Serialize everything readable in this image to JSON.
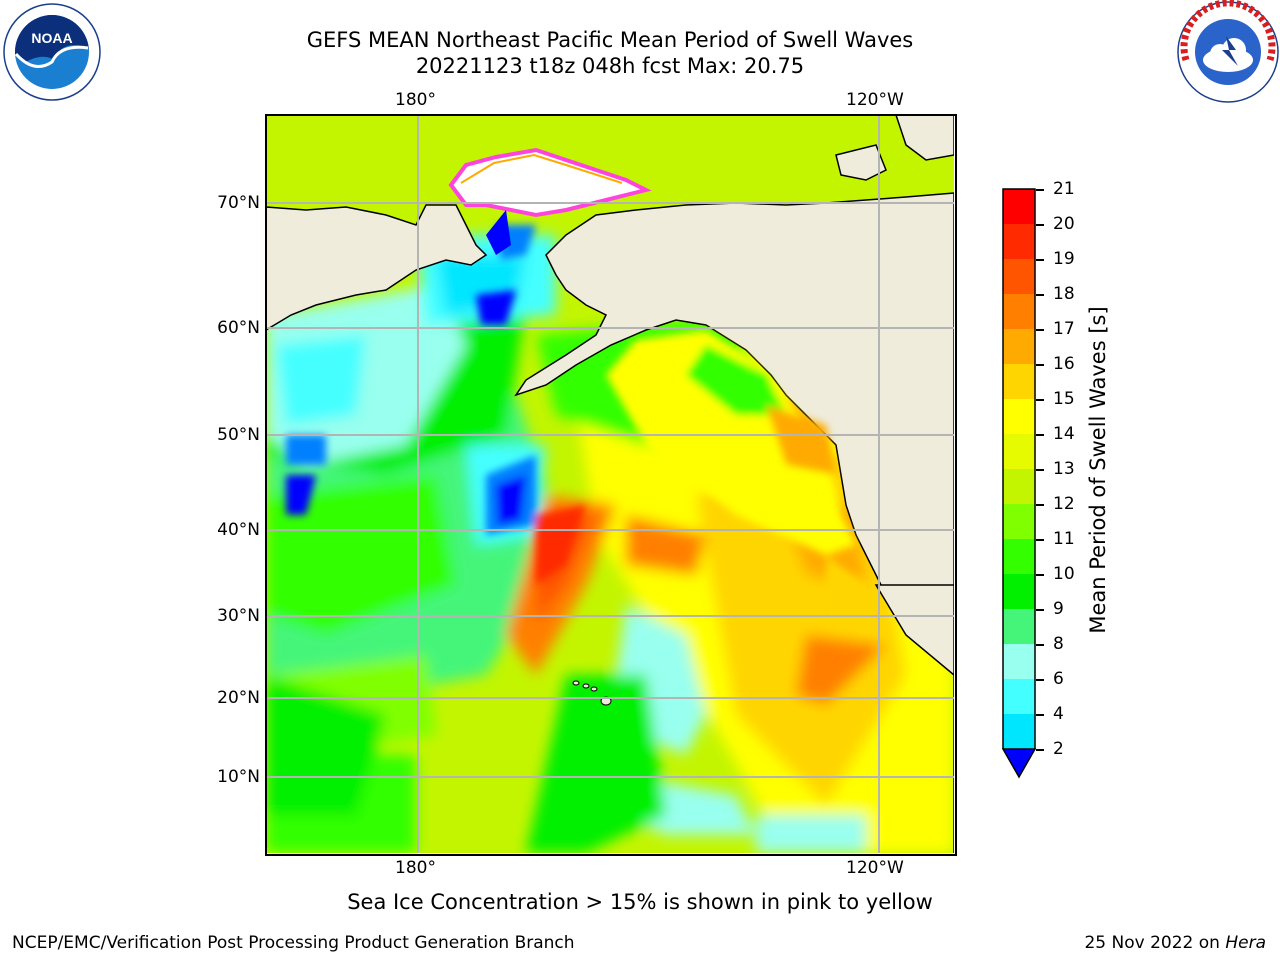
{
  "title_line1": "GEFS MEAN Northeast Pacific Mean Period of Swell Waves",
  "title_line2": "20221123 t18z 048h fcst   Max: 20.75",
  "lon_labels": [
    "180°",
    "120°W"
  ],
  "lat_labels": [
    "70°N",
    "60°N",
    "50°N",
    "40°N",
    "30°N",
    "20°N",
    "10°N"
  ],
  "colorbar": {
    "title": "Mean Period of Swell Waves [s]",
    "ticks": [
      "21",
      "20",
      "19",
      "18",
      "17",
      "16",
      "15",
      "14",
      "13",
      "12",
      "11",
      "10",
      "9",
      "8",
      "6",
      "4",
      "2"
    ],
    "colors": [
      "#ff0000",
      "#ff2a00",
      "#ff5500",
      "#ff8000",
      "#ffaa00",
      "#ffd500",
      "#ffff00",
      "#e6fa00",
      "#c3f500",
      "#80ff00",
      "#33ff00",
      "#00f000",
      "#44f57a",
      "#99ffee",
      "#44ffff",
      "#00e6ff",
      "#0080ff",
      "#0000ff"
    ]
  },
  "footnote": "Sea Ice Concentration > 15% is shown in pink to yellow",
  "credit_left": "NCEP/EMC/Verification Post Processing Product Generation Branch",
  "credit_right_date": "25 Nov 2022 on",
  "credit_right_machine": "Hera",
  "logos": {
    "left_icon": "noaa-logo",
    "right_icon": "nws-logo",
    "noaa_text": "NOAA",
    "noaa_ring": "NATIONAL OCEANIC AND ATMOSPHERIC ADMINISTRATION · U.S. DEPARTMENT OF COMMERCE",
    "nws_ring": "NATIONAL WEATHER SERVICE"
  },
  "colors": {
    "land": "#efecdc",
    "grid": "#b4b4b4",
    "ice_pink": "#ff44dd"
  }
}
